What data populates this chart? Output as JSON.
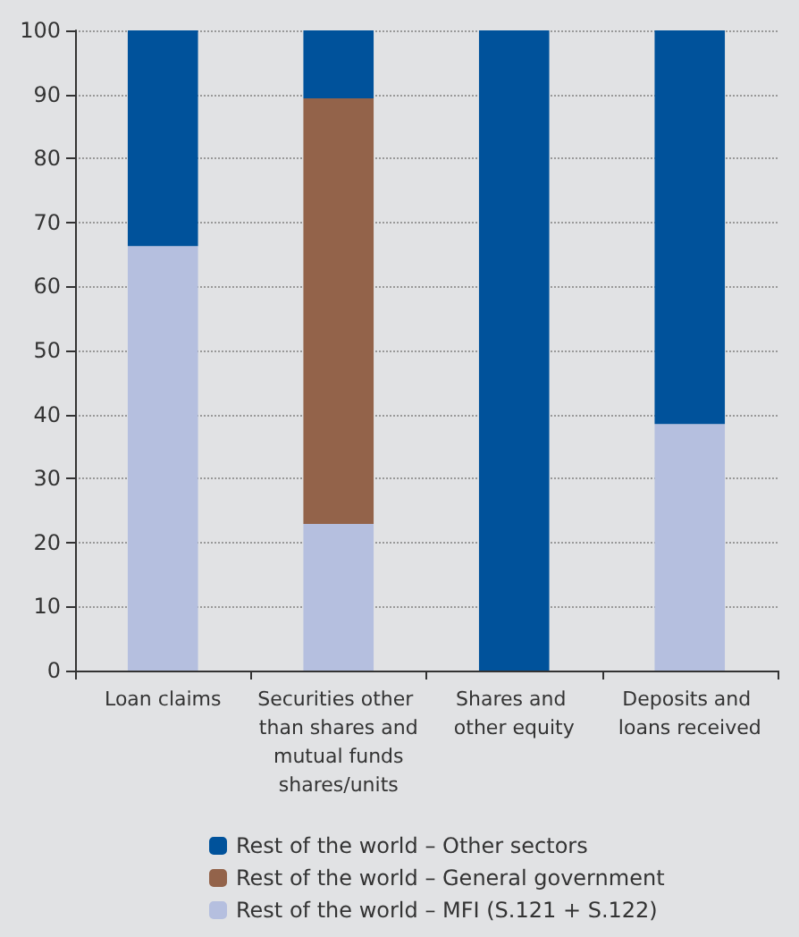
{
  "chart_data": {
    "type": "bar",
    "stacked": true,
    "categories": [
      "Loan claims",
      "Securities other than shares and mutual funds shares/units",
      "Shares and other equity",
      "Deposits and loans received"
    ],
    "series": [
      {
        "name": "Rest of the world – MFI (S.121 + S.122)",
        "color": "#b5bfdf",
        "values": [
          66.3,
          22.9,
          0,
          38.5
        ]
      },
      {
        "name": "Rest of the world – General government",
        "color": "#93634a",
        "values": [
          0,
          66.5,
          0,
          0
        ]
      },
      {
        "name": "Rest of the world – Other sectors",
        "color": "#00529b",
        "values": [
          33.7,
          10.6,
          100,
          61.5
        ]
      }
    ],
    "ylim": [
      0,
      100
    ],
    "yticks": [
      0,
      10,
      20,
      30,
      40,
      50,
      60,
      70,
      80,
      90,
      100
    ],
    "grid": "y",
    "legend": "bottom"
  }
}
